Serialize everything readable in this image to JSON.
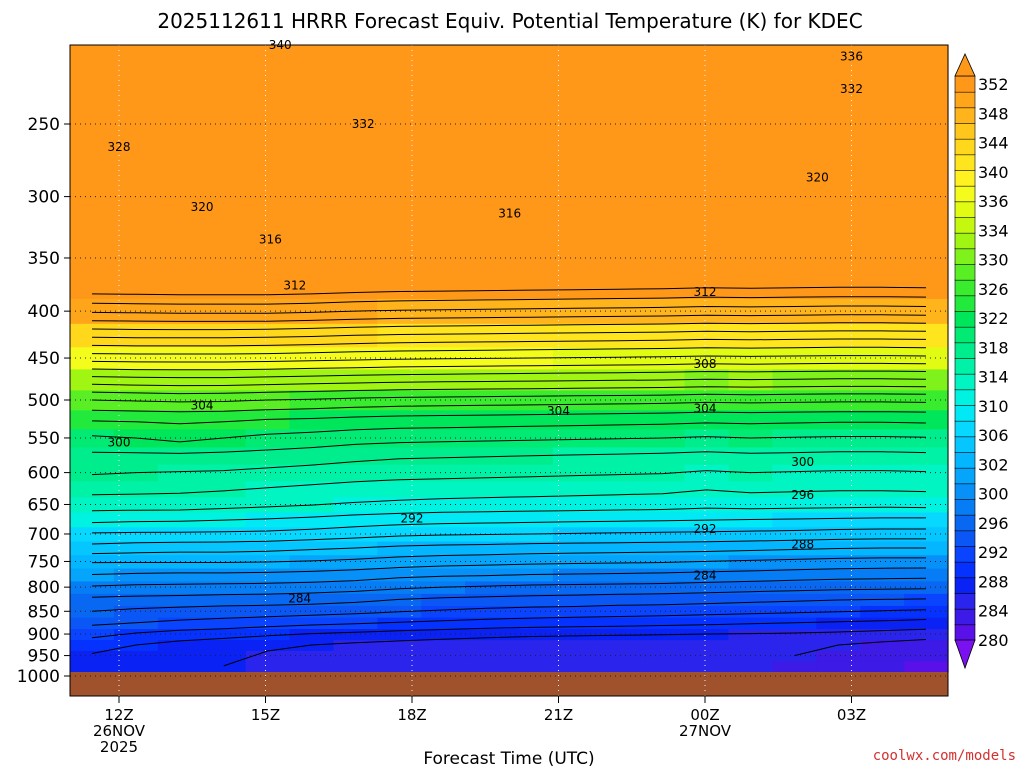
{
  "chart_data": {
    "type": "heatmap",
    "title": "2025112611 HRRR Forecast Equiv. Potential Temperature (K) for KDEC",
    "xlabel": "Forecast Time (UTC)",
    "ylabel": "",
    "y_scale": "log",
    "y_reversed": true,
    "ylim": [
      1000,
      200
    ],
    "grid": true,
    "x_ticks": [
      {
        "label": "12Z",
        "sub1": "26NOV",
        "sub2": "2025"
      },
      {
        "label": "15Z",
        "sub1": "",
        "sub2": ""
      },
      {
        "label": "18Z",
        "sub1": "",
        "sub2": ""
      },
      {
        "label": "21Z",
        "sub1": "",
        "sub2": ""
      },
      {
        "label": "00Z",
        "sub1": "27NOV",
        "sub2": ""
      },
      {
        "label": "03Z",
        "sub1": "",
        "sub2": ""
      }
    ],
    "y_ticks": [
      "250",
      "300",
      "350",
      "400",
      "450",
      "500",
      "550",
      "600",
      "650",
      "700",
      "750",
      "800",
      "850",
      "900",
      "950",
      "1000"
    ],
    "levels": [
      1000,
      975,
      950,
      925,
      900,
      875,
      850,
      825,
      800,
      775,
      750,
      725,
      700,
      675,
      650,
      625,
      600,
      575,
      550,
      525,
      500,
      475,
      450,
      425,
      400,
      375,
      350,
      325,
      300,
      275,
      250,
      225,
      200
    ],
    "times": [
      "10Z",
      "11Z",
      "12Z",
      "13Z",
      "14Z",
      "15Z",
      "16Z",
      "17Z",
      "18Z",
      "19Z",
      "20Z",
      "21Z",
      "22Z",
      "23Z",
      "00Z",
      "01Z",
      "02Z",
      "03Z",
      "04Z",
      "05Z"
    ],
    "column_profiles": [
      [
        287.5,
        287.5,
        287.8,
        288.8,
        290.6,
        292.4,
        294.0,
        295.6,
        297.8,
        300.0,
        302.2,
        305.3,
        307.8,
        310.6,
        313.0,
        314.6,
        316.2,
        317.6,
        319.7,
        322.2,
        326.0,
        331.2,
        336.9,
        342.5,
        348.3
      ],
      [
        287.0,
        287.0,
        287.2,
        288.0,
        289.8,
        292.0,
        293.6,
        295.4,
        297.6,
        299.8,
        302.2,
        305.0,
        307.7,
        310.4,
        313.0,
        314.5,
        316.0,
        317.6,
        320.0,
        322.3,
        326.2,
        331.4,
        337.0,
        342.6,
        348.4
      ],
      [
        286.6,
        286.6,
        286.7,
        287.3,
        289.2,
        291.6,
        293.3,
        295.3,
        297.5,
        299.7,
        302.2,
        304.8,
        307.7,
        310.3,
        313.0,
        314.4,
        315.9,
        317.6,
        320.7,
        322.4,
        326.4,
        331.5,
        337.0,
        342.6,
        348.5
      ],
      [
        286.0,
        286.0,
        286.2,
        286.8,
        288.8,
        291.3,
        293.1,
        295.1,
        297.4,
        299.7,
        302.2,
        304.8,
        307.6,
        310.1,
        312.7,
        314.2,
        315.8,
        317.5,
        320.0,
        322.3,
        326.3,
        331.5,
        337.0,
        342.6,
        348.5
      ],
      [
        285.6,
        285.6,
        285.7,
        286.4,
        288.3,
        290.9,
        293.0,
        295.0,
        297.3,
        299.6,
        302.1,
        304.6,
        307.5,
        309.9,
        312.4,
        313.9,
        315.5,
        317.3,
        319.5,
        322.0,
        326.0,
        331.3,
        336.9,
        342.5,
        348.5
      ],
      [
        285.2,
        285.2,
        285.3,
        286.0,
        287.9,
        290.5,
        292.8,
        294.8,
        297.1,
        299.4,
        301.9,
        304.3,
        307.2,
        309.6,
        312.1,
        313.6,
        315.2,
        317.0,
        319.2,
        321.8,
        325.8,
        331.1,
        336.7,
        342.3,
        348.3
      ],
      [
        284.8,
        284.8,
        284.9,
        285.6,
        287.6,
        290.2,
        292.5,
        294.5,
        296.8,
        299.1,
        301.6,
        304.0,
        306.8,
        309.2,
        311.8,
        313.3,
        314.9,
        316.6,
        318.8,
        321.5,
        325.5,
        330.9,
        336.5,
        342.0,
        348.0
      ],
      [
        284.6,
        284.6,
        284.7,
        285.3,
        287.2,
        289.9,
        292.1,
        294.0,
        296.3,
        298.6,
        301.2,
        303.6,
        306.4,
        308.9,
        311.6,
        313.1,
        314.7,
        316.3,
        318.6,
        321.3,
        325.3,
        330.7,
        336.3,
        341.8,
        347.8
      ],
      [
        284.5,
        284.5,
        284.6,
        285.0,
        286.9,
        289.6,
        291.8,
        293.7,
        296.0,
        298.3,
        300.9,
        303.4,
        306.2,
        308.7,
        311.4,
        313.0,
        314.6,
        316.2,
        318.5,
        321.2,
        325.2,
        330.6,
        336.2,
        341.7,
        347.7
      ],
      [
        284.4,
        284.4,
        284.5,
        284.8,
        286.6,
        289.3,
        291.5,
        293.5,
        295.8,
        298.2,
        300.7,
        303.3,
        306.1,
        308.6,
        311.3,
        312.9,
        314.5,
        316.1,
        318.4,
        321.1,
        325.1,
        330.5,
        336.1,
        341.6,
        347.6
      ],
      [
        284.3,
        284.3,
        284.4,
        284.6,
        286.4,
        289.1,
        291.3,
        293.3,
        295.6,
        298.0,
        300.5,
        303.1,
        306.0,
        308.5,
        311.2,
        312.8,
        314.4,
        316.0,
        318.3,
        321.0,
        325.0,
        330.4,
        336.0,
        341.5,
        347.5
      ],
      [
        284.2,
        284.2,
        284.3,
        284.5,
        286.3,
        288.9,
        291.2,
        293.2,
        295.5,
        297.9,
        300.4,
        303.0,
        305.9,
        308.4,
        311.1,
        312.7,
        314.3,
        315.9,
        318.2,
        320.9,
        324.9,
        330.3,
        335.9,
        341.4,
        347.4
      ],
      [
        284.2,
        284.2,
        284.3,
        284.5,
        286.2,
        288.8,
        291.0,
        293.0,
        295.4,
        297.8,
        300.3,
        302.9,
        305.8,
        308.3,
        311.0,
        312.6,
        314.2,
        315.8,
        318.1,
        320.8,
        324.8,
        330.2,
        335.8,
        341.3,
        347.3
      ],
      [
        284.4,
        284.4,
        284.5,
        284.5,
        286.1,
        288.6,
        290.9,
        292.9,
        295.3,
        297.7,
        300.2,
        302.8,
        305.7,
        308.2,
        310.9,
        312.5,
        314.1,
        315.7,
        318.0,
        320.7,
        324.7,
        330.1,
        335.7,
        341.2,
        347.2
      ],
      [
        284.6,
        284.6,
        284.6,
        284.4,
        286.0,
        288.4,
        290.7,
        292.7,
        295.1,
        297.5,
        300.0,
        302.7,
        305.6,
        308.1,
        310.6,
        312.1,
        313.8,
        315.5,
        317.8,
        320.5,
        324.5,
        329.9,
        335.5,
        341.0,
        347.0
      ],
      [
        284.3,
        284.3,
        284.4,
        284.3,
        285.9,
        288.2,
        290.5,
        292.5,
        294.9,
        297.3,
        299.8,
        302.5,
        305.5,
        308.0,
        310.8,
        312.4,
        314.0,
        315.7,
        318.0,
        320.6,
        324.6,
        330.0,
        335.6,
        341.1,
        347.1
      ],
      [
        283.9,
        283.9,
        284.0,
        284.2,
        285.8,
        288.0,
        290.3,
        292.3,
        294.7,
        297.1,
        299.6,
        302.3,
        305.4,
        307.9,
        310.7,
        312.3,
        313.9,
        315.6,
        317.9,
        320.5,
        324.5,
        329.9,
        335.5,
        341.0,
        347.0
      ],
      [
        283.6,
        283.6,
        283.7,
        284.0,
        285.6,
        287.8,
        290.1,
        292.1,
        294.5,
        296.9,
        299.4,
        302.1,
        305.2,
        307.8,
        310.6,
        312.2,
        313.8,
        315.5,
        317.8,
        320.4,
        324.4,
        329.8,
        335.4,
        340.9,
        346.9
      ],
      [
        282.8,
        282.8,
        282.9,
        283.5,
        285.3,
        287.6,
        289.9,
        292.0,
        294.4,
        296.8,
        299.3,
        302.0,
        305.1,
        307.7,
        310.5,
        312.2,
        313.8,
        315.5,
        317.8,
        320.4,
        324.4,
        329.8,
        335.4,
        340.9,
        346.9
      ],
      [
        281.9,
        281.9,
        282.1,
        283.0,
        285.0,
        287.3,
        289.7,
        291.9,
        294.3,
        296.7,
        299.3,
        302.0,
        305.1,
        307.7,
        310.6,
        312.3,
        313.9,
        315.6,
        317.9,
        320.5,
        324.5,
        329.9,
        335.5,
        341.0,
        347.0
      ]
    ],
    "contour_labels": [
      {
        "text": "340",
        "time": "15.3",
        "level": 205
      },
      {
        "text": "336",
        "time": "3.0",
        "level": 211
      },
      {
        "text": "332",
        "time": "3.0",
        "level": 229
      },
      {
        "text": "332",
        "time": "17.0",
        "level": 250
      },
      {
        "text": "328",
        "time": "12.0",
        "level": 265
      },
      {
        "text": "320",
        "time": "13.7",
        "level": 308
      },
      {
        "text": "320",
        "time": "2.3",
        "level": 286
      },
      {
        "text": "316",
        "time": "20.0",
        "level": 313
      },
      {
        "text": "316",
        "time": "15.1",
        "level": 334
      },
      {
        "text": "312",
        "time": "15.6",
        "level": 375
      },
      {
        "text": "312",
        "time": "0.0",
        "level": 381
      },
      {
        "text": "308",
        "time": "0.0",
        "level": 457
      },
      {
        "text": "304",
        "time": "13.7",
        "level": 507
      },
      {
        "text": "304",
        "time": "21.0",
        "level": 514
      },
      {
        "text": "304",
        "time": "0.0",
        "level": 511
      },
      {
        "text": "300",
        "time": "12.0",
        "level": 556
      },
      {
        "text": "300",
        "time": "2.0",
        "level": 584
      },
      {
        "text": "296",
        "time": "2.0",
        "level": 635
      },
      {
        "text": "292",
        "time": "18.0",
        "level": 673
      },
      {
        "text": "292",
        "time": "0.0",
        "level": 691
      },
      {
        "text": "288",
        "time": "2.0",
        "level": 719
      },
      {
        "text": "284",
        "time": "15.7",
        "level": 823
      },
      {
        "text": "284",
        "time": "0.0",
        "level": 777
      }
    ],
    "colorbar": {
      "levels": [
        280,
        282,
        284,
        286,
        288,
        290,
        292,
        294,
        296,
        298,
        300,
        302,
        304,
        306,
        308,
        310,
        312,
        314,
        316,
        318,
        320,
        322,
        324,
        326,
        328,
        330,
        332,
        334,
        336,
        338,
        340,
        342,
        344,
        346,
        348,
        350,
        352
      ],
      "labels": [
        "352",
        "348",
        "344",
        "340",
        "336",
        "334",
        "330",
        "326",
        "322",
        "318",
        "314",
        "310",
        "306",
        "302",
        "300",
        "296",
        "292",
        "288",
        "284",
        "280"
      ],
      "colors": [
        "#5a10e8",
        "#3d1ae6",
        "#2a24ec",
        "#0b22f4",
        "#0632ff",
        "#0a44ff",
        "#0b57f5",
        "#0868f2",
        "#067df4",
        "#0690f8",
        "#05a5fc",
        "#03b6ff",
        "#05c6ff",
        "#07d8ff",
        "#00e9f4",
        "#00f2e0",
        "#00f5c2",
        "#00f2a6",
        "#00ed8d",
        "#00ea74",
        "#00e65a",
        "#22ea3c",
        "#39ec2e",
        "#5aef24",
        "#7ef21a",
        "#a0f513",
        "#c4f80f",
        "#e2fb12",
        "#f4fc1c",
        "#fff220",
        "#ffe51e",
        "#ffd81c",
        "#ffc61c",
        "#ffb41b",
        "#ffa51a",
        "#ff9819"
      ]
    }
  },
  "ground_color": "#a0522d",
  "credit": "coolwx.com/models"
}
